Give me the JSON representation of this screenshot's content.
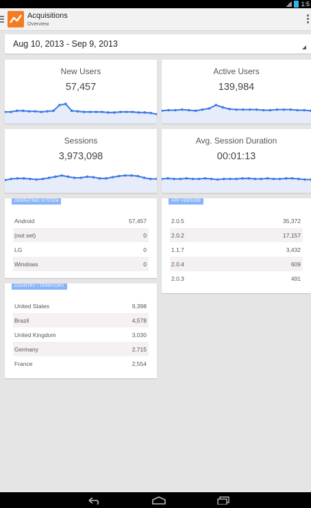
{
  "status_bar": {
    "time": "1:5",
    "icons": [
      "signal-icon",
      "wifi-icon",
      "battery-icon"
    ]
  },
  "header": {
    "title": "Acquisitions",
    "subtitle": "Overview"
  },
  "date_range": {
    "label": "Aug 10, 2013 - Sep 9, 2013"
  },
  "colors": {
    "accent": "#3b78e7",
    "tag": "#8ab4f8",
    "logo": "#f47b20"
  },
  "metrics": [
    {
      "title": "New Users",
      "value": "57,457",
      "trend": [
        3,
        3,
        4,
        4,
        3.5,
        3.5,
        3,
        3.5,
        4,
        9,
        10,
        4,
        3.5,
        3,
        3,
        3,
        3,
        2.5,
        2.5,
        3,
        3,
        3,
        2.5,
        2.5,
        2,
        1
      ]
    },
    {
      "title": "Active Users",
      "value": "139,984",
      "trend": [
        4,
        4.5,
        4.5,
        5,
        4.5,
        4,
        5,
        6,
        9,
        7,
        5.5,
        5,
        5,
        5,
        5,
        4.5,
        4.5,
        5,
        5,
        5,
        4.5,
        4.5,
        4
      ]
    },
    {
      "title": "Sessions",
      "value": "3,973,098",
      "trend": [
        4,
        5,
        5.5,
        5.5,
        5,
        4.5,
        5,
        6,
        7,
        8,
        7,
        6,
        6,
        7,
        6.5,
        5.5,
        5.5,
        6.5,
        7.5,
        8,
        8,
        7.5,
        6,
        5,
        5
      ]
    },
    {
      "title": "Avg. Session Duration",
      "value": "00:01:13",
      "trend": [
        5,
        5.5,
        5,
        5,
        5.5,
        5,
        5,
        5.5,
        5,
        4.5,
        5,
        5,
        5,
        5.5,
        5.5,
        5,
        5,
        5.5,
        5,
        5,
        5.5,
        5.5,
        5,
        4.5,
        4.5
      ]
    }
  ],
  "tables": {
    "os": {
      "tag": "OPERATING SYSTEM",
      "rows": [
        {
          "name": "Android",
          "value": "57,457"
        },
        {
          "name": "(not set)",
          "value": "0"
        },
        {
          "name": "LG",
          "value": "0"
        },
        {
          "name": "Windows",
          "value": "0"
        }
      ]
    },
    "country": {
      "tag": "COUNTRY / TERRITORY",
      "rows": [
        {
          "name": "United States",
          "value": "9,398"
        },
        {
          "name": "Brazil",
          "value": "4,578"
        },
        {
          "name": "United Kingdom",
          "value": "3,030"
        },
        {
          "name": "Germany",
          "value": "2,715"
        },
        {
          "name": "France",
          "value": "2,554"
        }
      ]
    },
    "app": {
      "tag": "APP VERSION",
      "rows": [
        {
          "name": "2.0.5",
          "value": "35,372"
        },
        {
          "name": "2.0.2",
          "value": "17,157"
        },
        {
          "name": "1.1.7",
          "value": "3,432"
        },
        {
          "name": "2.0.4",
          "value": "609"
        },
        {
          "name": "2.0.3",
          "value": "491"
        }
      ]
    }
  },
  "nav": {
    "icons": [
      "back-icon",
      "home-icon",
      "recents-icon"
    ]
  }
}
